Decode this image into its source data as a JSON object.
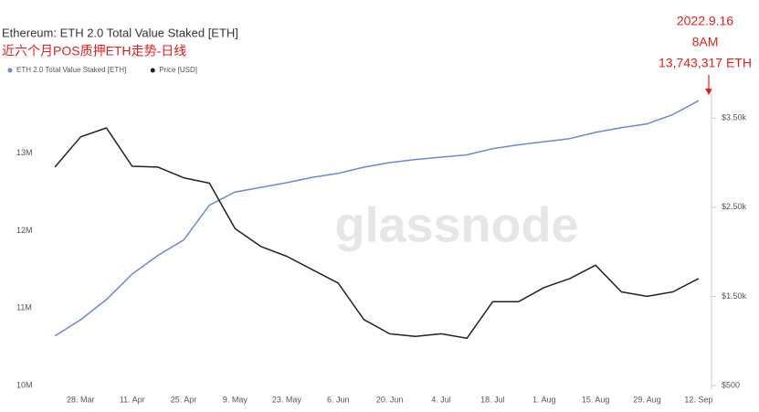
{
  "chart_data": {
    "type": "line",
    "title": "Ethereum: ETH 2.0 Total Value Staked [ETH]",
    "subtitle": "近六个月POS质押ETH走势-日线",
    "annotation": [
      "2022.9.16",
      "8AM",
      "13,743,317 ETH"
    ],
    "watermark": "glassnode",
    "categories": [
      null,
      "28. Mar",
      null,
      "11. Apr",
      null,
      "25. Apr",
      null,
      "9. May",
      null,
      "23. May",
      null,
      "6. Jun",
      null,
      "20. Jun",
      null,
      "4. Jul",
      null,
      "18. Jul",
      null,
      "1. Aug",
      null,
      "15. Aug",
      null,
      "29. Aug",
      null,
      "12. Sep"
    ],
    "series": [
      {
        "name": "ETH 2.0 Total Value Staked [ETH]",
        "color": "#6f86d6",
        "values": [
          10640000,
          10850000,
          11110000,
          11440000,
          11680000,
          11880000,
          12330000,
          12500000,
          12560000,
          12620000,
          12690000,
          12740000,
          12820000,
          12880000,
          12920000,
          12950000,
          12980000,
          13060000,
          13110000,
          13150000,
          13190000,
          13270000,
          13330000,
          13380000,
          13500000,
          13680000
        ]
      },
      {
        "name": "Price [USD]",
        "color": "#222222",
        "axis": "y2",
        "values": [
          2950,
          3290,
          3390,
          2960,
          2950,
          2830,
          2770,
          2260,
          2060,
          1950,
          1800,
          1650,
          1240,
          1080,
          1050,
          1080,
          1030,
          1440,
          1440,
          1600,
          1700,
          1850,
          1550,
          1500,
          1550,
          1700
        ]
      }
    ],
    "ylim": [
      10000000,
      13800000
    ],
    "yticks": [
      {
        "value": 10000000,
        "label": "10M"
      },
      {
        "value": 11000000,
        "label": "11M"
      },
      {
        "value": 12000000,
        "label": "12M"
      },
      {
        "value": 13000000,
        "label": "13M"
      }
    ],
    "y2lim": [
      500,
      3800
    ],
    "y2ticks": [
      {
        "value": 500,
        "label": "$500"
      },
      {
        "value": 1500,
        "label": "$1.50k"
      },
      {
        "value": 2500,
        "label": "$2.50k"
      },
      {
        "value": 3500,
        "label": "$3.50k"
      }
    ],
    "legend": "top-left"
  }
}
